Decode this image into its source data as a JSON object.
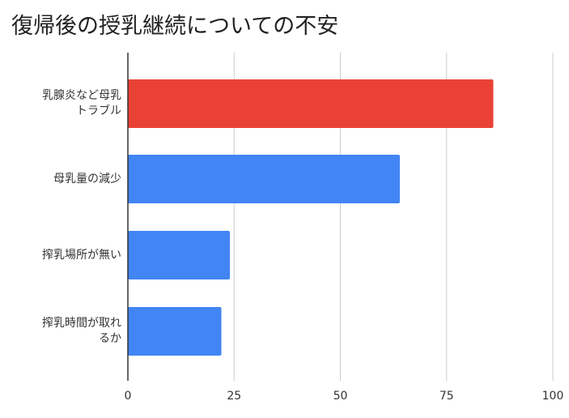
{
  "chart_data": {
    "type": "bar",
    "orientation": "horizontal",
    "title": "復帰後の授乳継続についての不安",
    "categories": [
      [
        "乳腺炎など母乳",
        "トラブル"
      ],
      [
        "母乳量の減少"
      ],
      [
        "搾乳場所が無い"
      ],
      [
        "搾乳時間が取れ",
        "るか"
      ]
    ],
    "values": [
      86,
      64,
      24,
      22
    ],
    "xlim": [
      0,
      100
    ],
    "xticks": [
      "0",
      "25",
      "50",
      "75",
      "100"
    ],
    "xtick_values": [
      0,
      25,
      50,
      75,
      100
    ],
    "grid": true,
    "colors": {
      "highlight": "#E94235",
      "bar": "#4285F4",
      "grid": "#CCCCCC",
      "axis": "#333333"
    },
    "highlight_index": 0
  }
}
